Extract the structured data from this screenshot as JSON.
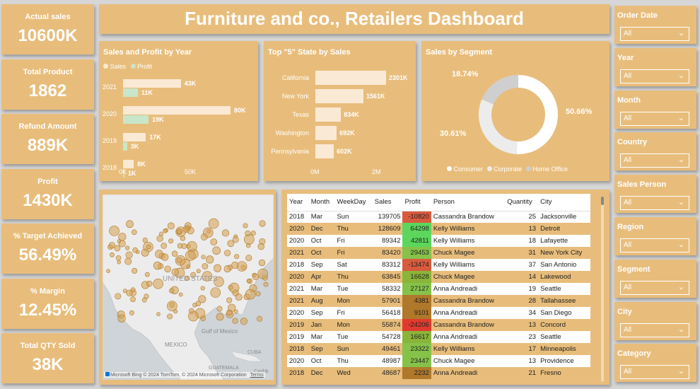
{
  "header": {
    "title": "Furniture and co., Retailers Dashboard"
  },
  "kpis": [
    {
      "label": "Actual sales",
      "value": "10600K"
    },
    {
      "label": "Total Product",
      "value": "1862"
    },
    {
      "label": "Refund Amount",
      "value": "889K"
    },
    {
      "label": "Profit",
      "value": "1430K"
    },
    {
      "label": "% Target Achieved",
      "value": "56.49%"
    },
    {
      "label": "% Margin",
      "value": "12.45%"
    },
    {
      "label": "Total QTY Sold",
      "value": "38K"
    }
  ],
  "colors": {
    "panel": "#e8bd7b",
    "sales_bar": "#fae9d4",
    "profit_bar": "#c8e6c9",
    "pos_profit": "#6bd36b",
    "neg_profit": "#e04a3a"
  },
  "sales_profit": {
    "title": "Sales and Profit by Year",
    "legend": [
      "Sales",
      "Profit"
    ],
    "axis_ticks": [
      "0K",
      "50K"
    ],
    "chart_data": {
      "type": "bar",
      "categories": [
        "2021",
        "2020",
        "2019",
        "2018"
      ],
      "series": [
        {
          "name": "Sales",
          "values": [
            43,
            80,
            17,
            8
          ],
          "labels": [
            "43K",
            "80K",
            "17K",
            "8K"
          ]
        },
        {
          "name": "Profit",
          "values": [
            11,
            19,
            3,
            1
          ],
          "labels": [
            "11K",
            "19K",
            "3K",
            "1K"
          ]
        }
      ],
      "xlim": [
        0,
        80
      ]
    }
  },
  "top_states": {
    "title": "Top \"5\" State by Sales",
    "axis_ticks": [
      "0M",
      "2M"
    ],
    "chart_data": {
      "type": "bar",
      "categories": [
        "California",
        "New York",
        "Texas",
        "Washington",
        "Pennsylvania"
      ],
      "values": [
        2301,
        1561,
        834,
        692,
        602
      ],
      "labels": [
        "2301K",
        "1561K",
        "834K",
        "692K",
        "602K"
      ],
      "xlim": [
        0,
        2301
      ]
    }
  },
  "segment": {
    "title": "Sales by Segment",
    "legend": [
      "Consumer",
      "Corporate",
      "Home Office"
    ],
    "colors": [
      "#ffffff",
      "#ececec",
      "#cfcfcf"
    ],
    "chart_data": {
      "type": "pie",
      "categories": [
        "Consumer",
        "Corporate",
        "Home Office"
      ],
      "values": [
        50.66,
        30.61,
        18.74
      ],
      "labels": [
        "50.66%",
        "30.61%",
        "18.74%"
      ]
    }
  },
  "map": {
    "labels": [
      "UNITED STATES",
      "Gulf of Mexico",
      "MEXICO",
      "GUATEMALA",
      "CUBA",
      "Caribb"
    ],
    "attribution": "© 2024 TomTom, © 2024 Microsoft Corporation",
    "bing": "Microsoft Bing",
    "terms": "Terms"
  },
  "table": {
    "columns": [
      "Year",
      "Month",
      "WeekDay",
      "Sales",
      "Profit",
      "Person",
      "Quantity",
      "City"
    ],
    "rows": [
      {
        "year": "2018",
        "month": "Mar",
        "weekday": "Sun",
        "sales": "139705",
        "profit": "-10820",
        "person": "Cassandra Brandow",
        "quantity": "25",
        "city": "Jacksonville"
      },
      {
        "year": "2020",
        "month": "Dec",
        "weekday": "Thu",
        "sales": "128609",
        "profit": "64298",
        "person": "Kelly Williams",
        "quantity": "13",
        "city": "Detroit"
      },
      {
        "year": "2020",
        "month": "Oct",
        "weekday": "Fri",
        "sales": "89342",
        "profit": "42811",
        "person": "Kelly Williams",
        "quantity": "18",
        "city": "Lafayette"
      },
      {
        "year": "2021",
        "month": "Oct",
        "weekday": "Fri",
        "sales": "83420",
        "profit": "29453",
        "person": "Chuck Magee",
        "quantity": "31",
        "city": "New York City"
      },
      {
        "year": "2018",
        "month": "Sep",
        "weekday": "Sat",
        "sales": "83312",
        "profit": "-13474",
        "person": "Kelly Williams",
        "quantity": "37",
        "city": "San Antonio"
      },
      {
        "year": "2020",
        "month": "Apr",
        "weekday": "Thu",
        "sales": "63845",
        "profit": "16628",
        "person": "Chuck Magee",
        "quantity": "14",
        "city": "Lakewood"
      },
      {
        "year": "2021",
        "month": "Mar",
        "weekday": "Tue",
        "sales": "58332",
        "profit": "27127",
        "person": "Anna Andreadi",
        "quantity": "19",
        "city": "Seattle"
      },
      {
        "year": "2021",
        "month": "Aug",
        "weekday": "Mon",
        "sales": "57901",
        "profit": "4381",
        "person": "Cassandra Brandow",
        "quantity": "28",
        "city": "Tallahassee"
      },
      {
        "year": "2020",
        "month": "Sep",
        "weekday": "Fri",
        "sales": "56418",
        "profit": "9101",
        "person": "Anna Andreadi",
        "quantity": "34",
        "city": "San Diego"
      },
      {
        "year": "2019",
        "month": "Jan",
        "weekday": "Mon",
        "sales": "55874",
        "profit": "-24206",
        "person": "Cassandra Brandow",
        "quantity": "13",
        "city": "Concord"
      },
      {
        "year": "2019",
        "month": "Mar",
        "weekday": "Tue",
        "sales": "54728",
        "profit": "16617",
        "person": "Anna Andreadi",
        "quantity": "23",
        "city": "Seattle"
      },
      {
        "year": "2018",
        "month": "Sep",
        "weekday": "Sun",
        "sales": "49461",
        "profit": "23322",
        "person": "Kelly Williams",
        "quantity": "17",
        "city": "Minneapolis"
      },
      {
        "year": "2020",
        "month": "Oct",
        "weekday": "Thu",
        "sales": "48987",
        "profit": "23447",
        "person": "Chuck Magee",
        "quantity": "13",
        "city": "Providence"
      },
      {
        "year": "2018",
        "month": "Dec",
        "weekday": "Wed",
        "sales": "48687",
        "profit": "2232",
        "person": "Anna Andreadi",
        "quantity": "21",
        "city": "Fresno"
      }
    ]
  },
  "slicers": [
    {
      "label": "Order Date",
      "value": "All"
    },
    {
      "label": "Year",
      "value": "All"
    },
    {
      "label": "Month",
      "value": "All"
    },
    {
      "label": "Country",
      "value": "All"
    },
    {
      "label": "Sales Person",
      "value": "All"
    },
    {
      "label": "Region",
      "value": "All"
    },
    {
      "label": "Segment",
      "value": "All"
    },
    {
      "label": "City",
      "value": "All"
    },
    {
      "label": "Category",
      "value": "All"
    }
  ]
}
